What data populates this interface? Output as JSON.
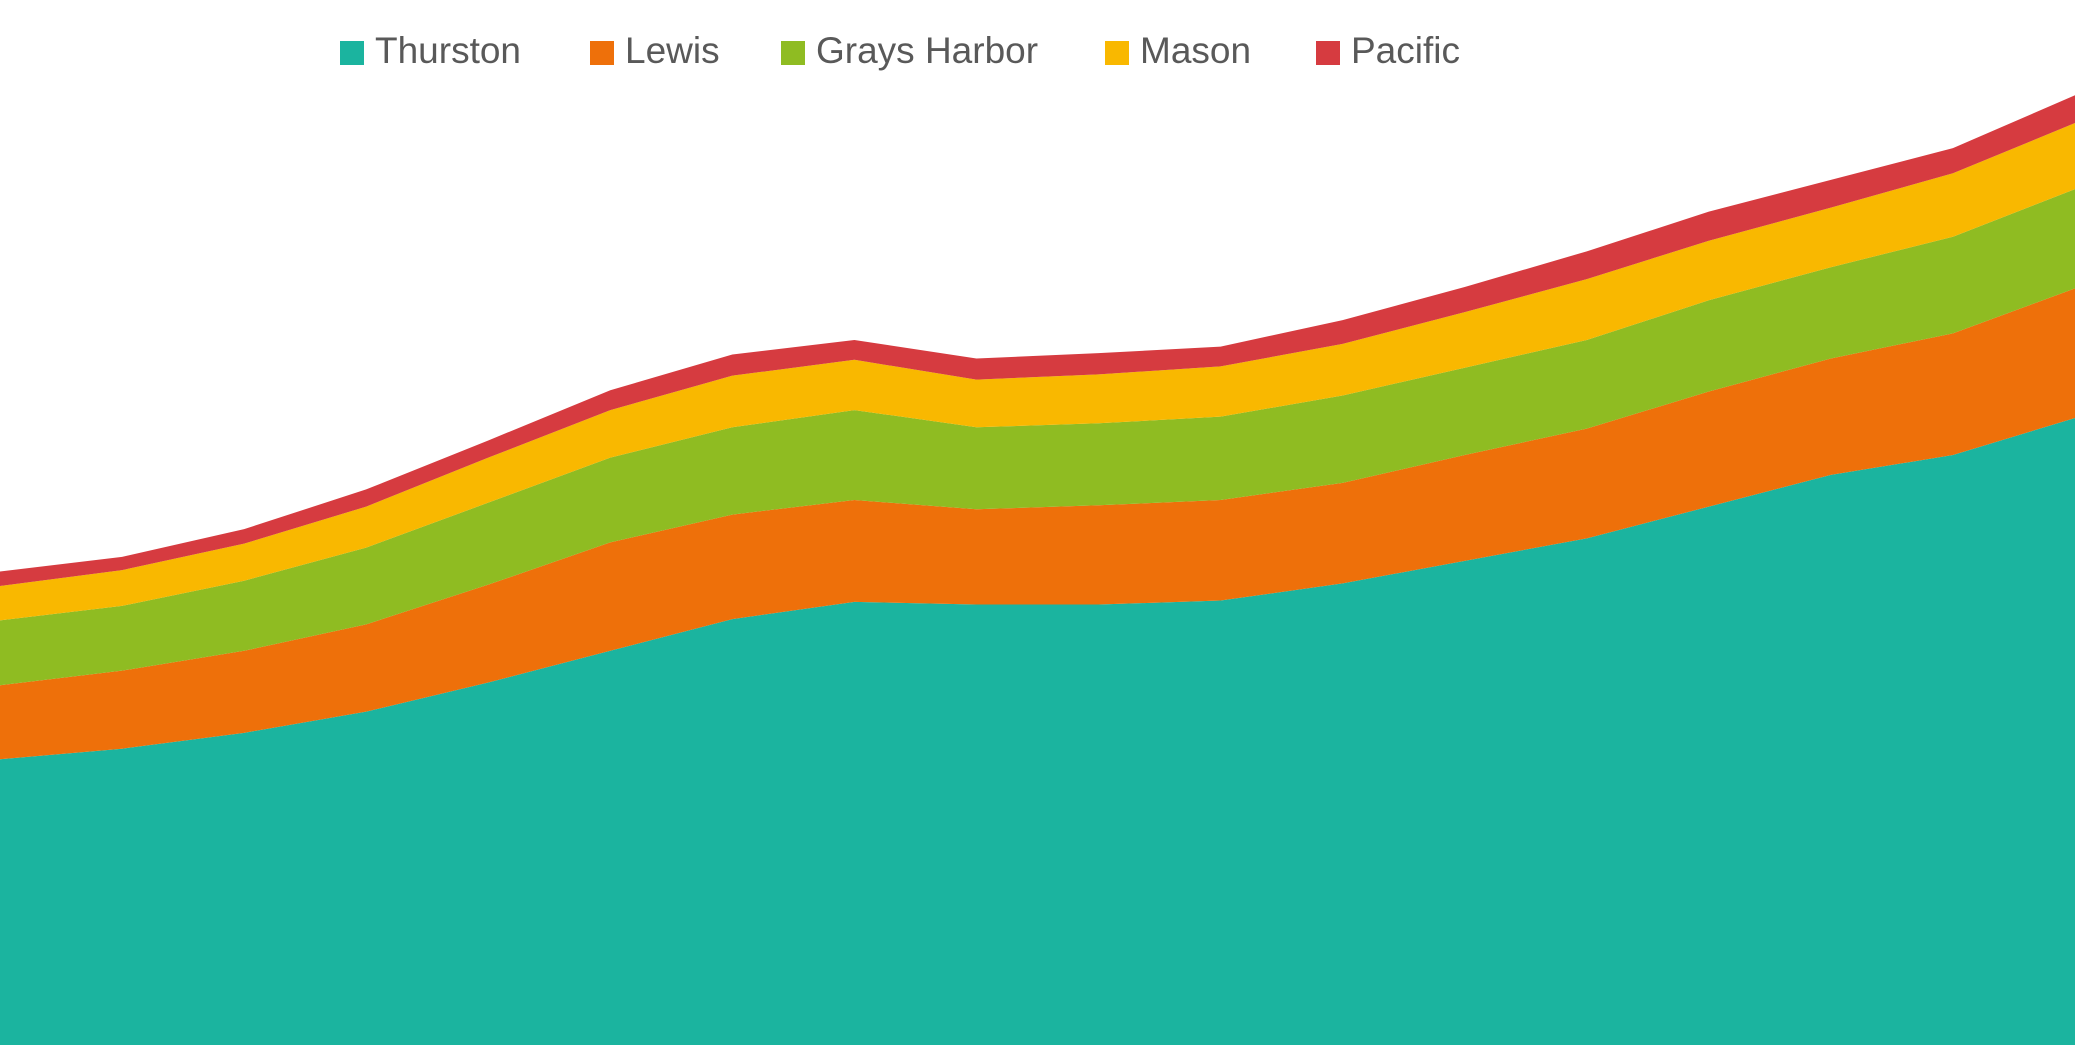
{
  "chart_data": {
    "type": "stacked_area",
    "categories": [
      null,
      null,
      null,
      null,
      null,
      null,
      null,
      null,
      null,
      null,
      null,
      null,
      null,
      null,
      null,
      null,
      null,
      null
    ],
    "ylim": [
      0,
      790
    ],
    "legend": "top",
    "series": [
      {
        "name": "Thurston",
        "color": "#1bb49f",
        "values": [
          216,
          224,
          236,
          252,
          274,
          298,
          322,
          335,
          333,
          333,
          336,
          349,
          366,
          383,
          407,
          431,
          446,
          474
        ]
      },
      {
        "name": "Lewis",
        "color": "#ee700a",
        "values": [
          56,
          59,
          62,
          66,
          74,
          82,
          79,
          77,
          72,
          75,
          76,
          76,
          80,
          83,
          87,
          88,
          92,
          98
        ]
      },
      {
        "name": "Grays Harbor",
        "color": "#8fbc22",
        "values": [
          49,
          49,
          53,
          58,
          62,
          64,
          66,
          68,
          62,
          62,
          63,
          66,
          66,
          67,
          69,
          69,
          73,
          75
        ]
      },
      {
        "name": "Mason",
        "color": "#f9b800",
        "values": [
          26,
          27,
          28,
          31,
          34,
          36,
          39,
          38,
          36,
          37,
          38,
          39,
          42,
          46,
          45,
          45,
          48,
          50
        ]
      },
      {
        "name": "Pacific",
        "color": "#d63b40",
        "values": [
          11,
          10,
          11,
          13,
          13,
          15,
          16,
          15,
          16,
          16,
          15,
          18,
          19,
          21,
          22,
          21,
          19,
          21
        ]
      }
    ]
  }
}
